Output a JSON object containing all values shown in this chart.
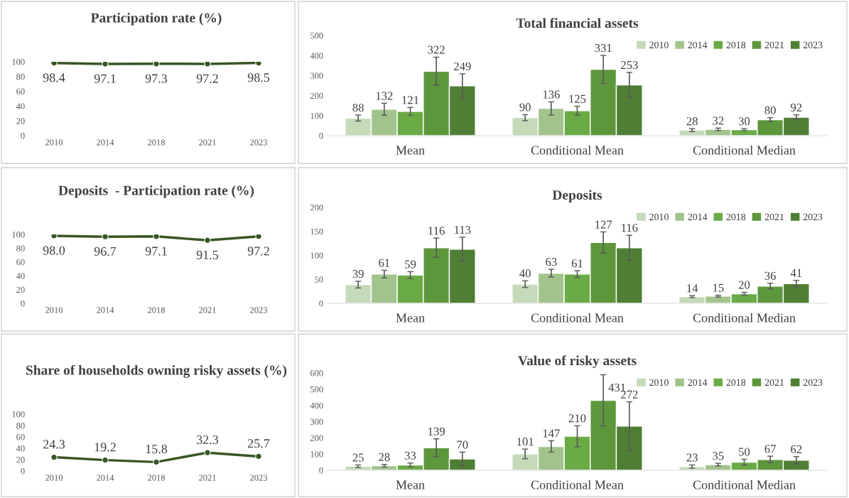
{
  "chart_data": [
    {
      "type": "line",
      "title": "Participation rate (%)",
      "categories": [
        "2010",
        "2014",
        "2018",
        "2021",
        "2023"
      ],
      "series": [
        {
          "color": "#375623",
          "values": [
            98.4,
            97.1,
            97.3,
            97.2,
            98.5
          ]
        }
      ],
      "ylim": [
        0,
        100
      ],
      "yticks": [
        0,
        20,
        40,
        60,
        80,
        100
      ],
      "data_labels": true,
      "marker": "circle",
      "grid": false,
      "legend": false
    },
    {
      "type": "bar",
      "title": "Total financial assets",
      "categories": [
        "Mean",
        "Conditional Mean",
        "Conditional Median"
      ],
      "series": [
        {
          "name": "2010",
          "color": "#c5dab9",
          "values": [
            88,
            90,
            28
          ],
          "errors": [
            15,
            15,
            7
          ]
        },
        {
          "name": "2014",
          "color": "#a2c48c",
          "values": [
            132,
            136,
            32
          ],
          "errors": [
            30,
            33,
            6
          ]
        },
        {
          "name": "2018",
          "color": "#6aab46",
          "values": [
            121,
            125,
            30
          ],
          "errors": [
            20,
            22,
            5
          ]
        },
        {
          "name": "2021",
          "color": "#5d973b",
          "values": [
            322,
            331,
            80
          ],
          "errors": [
            70,
            70,
            10
          ]
        },
        {
          "name": "2023",
          "color": "#4f7f34",
          "values": [
            249,
            253,
            92
          ],
          "errors": [
            60,
            63,
            12
          ]
        }
      ],
      "ylim": [
        0,
        500
      ],
      "yticks": [
        0,
        100,
        200,
        300,
        400,
        500
      ],
      "data_labels": true,
      "grid": false,
      "legend": "top right"
    },
    {
      "type": "line",
      "title": "Deposits  - Participation rate (%)",
      "categories": [
        "2010",
        "2014",
        "2018",
        "2021",
        "2023"
      ],
      "series": [
        {
          "color": "#375623",
          "values": [
            98.0,
            96.7,
            97.1,
            91.5,
            97.2
          ]
        }
      ],
      "value_labels": [
        "98.0",
        "96.7",
        "97.1",
        "91.5",
        "97.2"
      ],
      "ylim": [
        0,
        100
      ],
      "yticks": [
        0,
        20,
        40,
        60,
        80,
        100
      ],
      "marker": "circle",
      "grid": false,
      "legend": false
    },
    {
      "type": "bar",
      "title": "Deposits",
      "categories": [
        "Mean",
        "Conditional Mean",
        "Conditional Median"
      ],
      "series": [
        {
          "name": "2010",
          "color": "#c5dab9",
          "values": [
            39,
            40,
            14
          ],
          "errors": [
            7,
            7,
            2
          ]
        },
        {
          "name": "2014",
          "color": "#a2c48c",
          "values": [
            61,
            63,
            15
          ],
          "errors": [
            8,
            8,
            2
          ]
        },
        {
          "name": "2018",
          "color": "#6aab46",
          "values": [
            59,
            61,
            20
          ],
          "errors": [
            7,
            7,
            3
          ]
        },
        {
          "name": "2021",
          "color": "#5d973b",
          "values": [
            116,
            127,
            36
          ],
          "errors": [
            20,
            22,
            6
          ]
        },
        {
          "name": "2023",
          "color": "#4f7f34",
          "values": [
            113,
            116,
            41
          ],
          "errors": [
            25,
            26,
            7
          ]
        }
      ],
      "ylim": [
        0,
        200
      ],
      "yticks": [
        0,
        50,
        100,
        150,
        200
      ],
      "data_labels": true,
      "grid": false,
      "legend": "top right"
    },
    {
      "type": "line",
      "title": "Share of households owning risky assets (%)",
      "categories": [
        "2010",
        "2014",
        "2018",
        "2021",
        "2023"
      ],
      "series": [
        {
          "color": "#375623",
          "values": [
            24.3,
            19.2,
            15.8,
            32.3,
            25.7
          ]
        }
      ],
      "ylim": [
        0,
        100
      ],
      "yticks": [
        0,
        20,
        40,
        60,
        80,
        100
      ],
      "data_labels": true,
      "marker": "circle",
      "grid": false,
      "legend": false
    },
    {
      "type": "bar",
      "title": "Value of risky assets",
      "categories": [
        "Mean",
        "Conditional Mean",
        "Conditional Median"
      ],
      "series": [
        {
          "name": "2010",
          "color": "#c5dab9",
          "values": [
            25,
            101,
            23
          ],
          "errors": [
            8,
            30,
            10
          ]
        },
        {
          "name": "2014",
          "color": "#a2c48c",
          "values": [
            28,
            147,
            35
          ],
          "errors": [
            8,
            35,
            8
          ]
        },
        {
          "name": "2018",
          "color": "#6aab46",
          "values": [
            33,
            210,
            50
          ],
          "errors": [
            12,
            65,
            18
          ]
        },
        {
          "name": "2021",
          "color": "#5d973b",
          "values": [
            139,
            431,
            67
          ],
          "errors": [
            55,
            158,
            20
          ]
        },
        {
          "name": "2023",
          "color": "#4f7f34",
          "values": [
            70,
            272,
            62
          ],
          "errors": [
            42,
            150,
            22
          ]
        }
      ],
      "ylim": [
        0,
        600
      ],
      "yticks": [
        0,
        100,
        200,
        300,
        400,
        500,
        600
      ],
      "data_labels": true,
      "grid": false,
      "legend": "top right"
    }
  ]
}
